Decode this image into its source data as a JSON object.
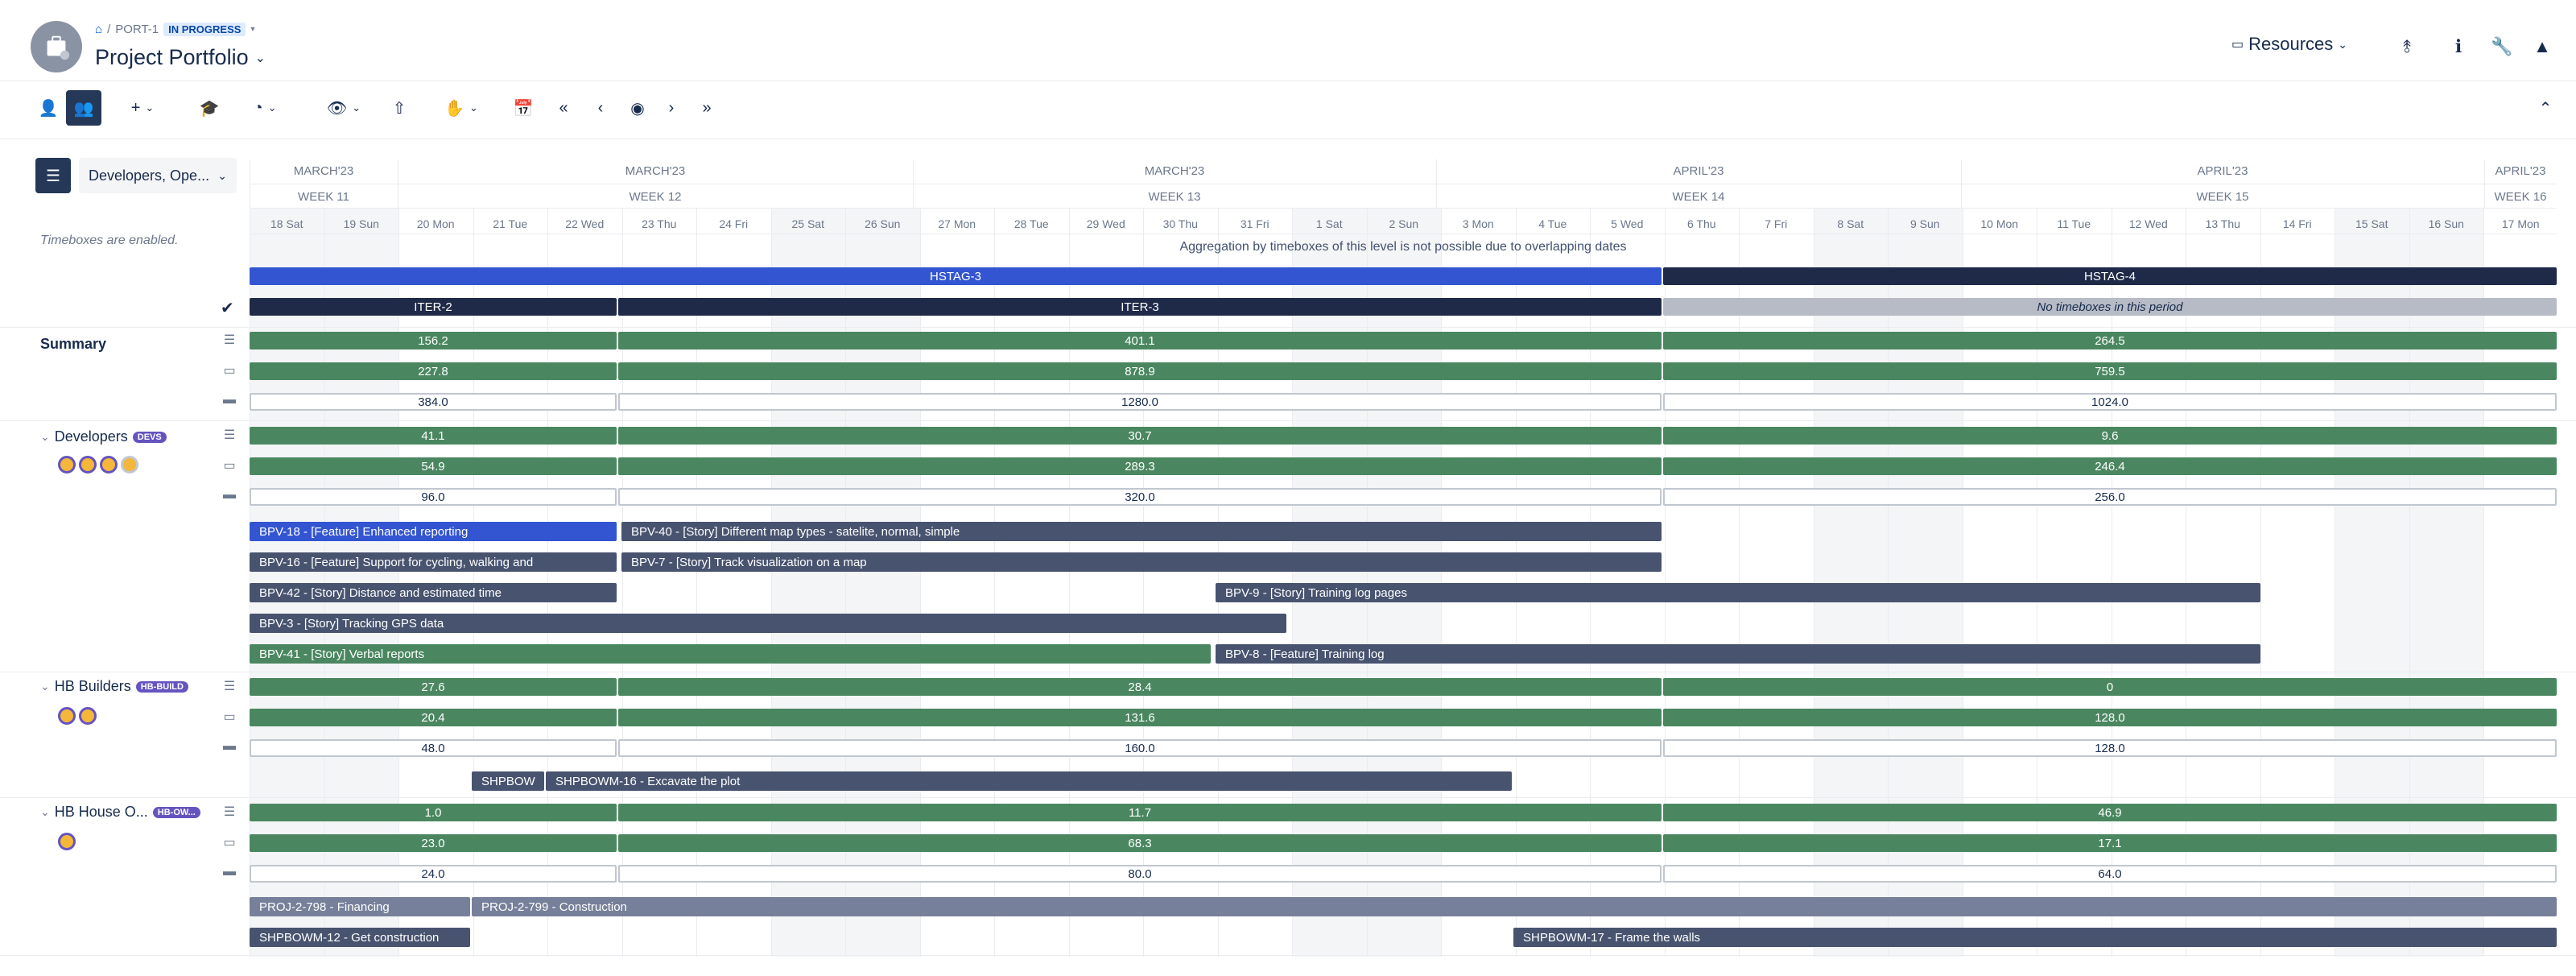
{
  "header": {
    "breadcrumb_id": "PORT-1",
    "status": "IN PROGRESS",
    "title": "Project Portfolio",
    "resources_label": "Resources"
  },
  "left": {
    "filter_value": "Developers, Ope...",
    "timebox_note": "Timeboxes are enabled.",
    "summary_label": "Summary",
    "teams": [
      {
        "name": "Developers",
        "tag": "DEVS"
      },
      {
        "name": "HB Builders",
        "tag": "HB-BUILD"
      },
      {
        "name": "HB House O...",
        "tag": "HB-OW..."
      }
    ]
  },
  "timeline": {
    "months": [
      "MARCH'23",
      "MARCH'23",
      "MARCH'23",
      "APRIL'23",
      "APRIL'23",
      "APRIL'23"
    ],
    "weeks": [
      "WEEK 11",
      "WEEK 12",
      "WEEK 13",
      "WEEK 14",
      "WEEK 15",
      "WEEK 16"
    ],
    "days": [
      "18 Sat",
      "19 Sun",
      "20 Mon",
      "21 Tue",
      "22 Wed",
      "23 Thu",
      "24 Fri",
      "25 Sat",
      "26 Sun",
      "27 Mon",
      "28 Tue",
      "29 Wed",
      "30 Thu",
      "31 Fri",
      "1 Sat",
      "2 Sun",
      "3 Mon",
      "4 Tue",
      "5 Wed",
      "6 Thu",
      "7 Fri",
      "8 Sat",
      "9 Sun",
      "10 Mon",
      "11 Tue",
      "12 Wed",
      "13 Thu",
      "14 Fri",
      "15 Sat",
      "16 Sun",
      "17 Mon"
    ],
    "aggregation_note": "Aggregation by timeboxes of this level is not possible due to overlapping dates",
    "stages": [
      "HSTAG-3",
      "HSTAG-4"
    ],
    "iterations": [
      "ITER-2",
      "ITER-3"
    ],
    "no_timebox": "No timeboxes in this period"
  },
  "summary": {
    "r1": [
      "156.2",
      "401.1",
      "264.5"
    ],
    "r2": [
      "227.8",
      "878.9",
      "759.5"
    ],
    "r3": [
      "384.0",
      "1280.0",
      "1024.0"
    ]
  },
  "developers": {
    "r1": [
      "41.1",
      "30.7",
      "9.6"
    ],
    "r2": [
      "54.9",
      "289.3",
      "246.4"
    ],
    "r3": [
      "96.0",
      "320.0",
      "256.0"
    ],
    "items": [
      "BPV-18 - [Feature] Enhanced reporting",
      "BPV-40 - [Story] Different map types - satelite, normal, simple",
      "BPV-16 - [Feature] Support for cycling, walking and",
      "BPV-7 - [Story] Track visualization on a map",
      "BPV-42 - [Story] Distance and estimated time",
      "BPV-9 - [Story] Training log pages",
      "BPV-3 - [Story] Tracking GPS data",
      "BPV-41 - [Story] Verbal reports",
      "BPV-8 - [Feature] Training log"
    ]
  },
  "builders": {
    "r1": [
      "27.6",
      "28.4",
      "0"
    ],
    "r2": [
      "20.4",
      "131.6",
      "128.0"
    ],
    "r3": [
      "48.0",
      "160.0",
      "128.0"
    ],
    "items": [
      "SHPBOW",
      "SHPBOWM-16 - Excavate the plot"
    ]
  },
  "owners": {
    "r1": [
      "1.0",
      "11.7",
      "46.9"
    ],
    "r2": [
      "23.0",
      "68.3",
      "17.1"
    ],
    "r3": [
      "24.0",
      "80.0",
      "64.0"
    ],
    "items": [
      "PROJ-2-798 - Financing",
      "PROJ-2-799 - Construction",
      "SHPBOWM-12 - Get construction",
      "SHPBOWM-17 - Frame the walls"
    ]
  }
}
